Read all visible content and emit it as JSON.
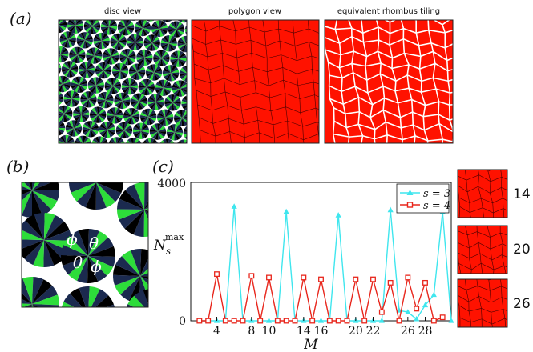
{
  "figure": {
    "panel_labels": {
      "a": "(a)",
      "b": "(b)",
      "c": "(c)"
    },
    "panel_a_titles": [
      "disc view",
      "polygon view",
      "equivalent rhombus tiling"
    ],
    "panel_b_angles": {
      "phi": "ϕ",
      "theta": "θ"
    },
    "side_labels": [
      "14",
      "20",
      "26"
    ],
    "colors": {
      "navy": "#1b2a4f",
      "teal": "#1f7f9c",
      "green": "#2ddc3a",
      "black": "#000000",
      "red": "#ff1200",
      "cyan": "#3fe6ee",
      "series_red": "#e8261c"
    }
  },
  "chart_data": {
    "type": "line",
    "title": "",
    "xlabel": "M",
    "ylabel": "N_s^max",
    "ylabel_main": "N",
    "ylabel_sub": "s",
    "ylabel_sup": "max",
    "xlim": [
      1,
      31
    ],
    "ylim": [
      0,
      4000
    ],
    "y_ticks": [
      0,
      4000
    ],
    "y_tick_labels": [
      "0",
      "4000"
    ],
    "x_ticks": [
      4,
      8,
      10,
      14,
      16,
      20,
      22,
      26,
      28
    ],
    "x_tick_labels": [
      "4",
      "8",
      "10",
      "14",
      "16",
      "20",
      "22",
      "26",
      "28"
    ],
    "legend": [
      "s = 3",
      "s = 4"
    ],
    "legend_position": "top-right",
    "series": [
      {
        "name": "s = 3",
        "marker": "triangle",
        "color": "#3fe6ee",
        "x": [
          2,
          3,
          4,
          5,
          6,
          7,
          8,
          9,
          10,
          11,
          12,
          13,
          14,
          15,
          16,
          17,
          18,
          19,
          20,
          21,
          22,
          23,
          24,
          25,
          26,
          27,
          28,
          29,
          30,
          31
        ],
        "y": [
          0,
          0,
          0,
          0,
          3300,
          0,
          0,
          0,
          0,
          0,
          3150,
          0,
          0,
          0,
          0,
          0,
          3050,
          0,
          0,
          0,
          0,
          0,
          3200,
          300,
          250,
          50,
          450,
          750,
          3150,
          0
        ]
      },
      {
        "name": "s = 4",
        "marker": "square",
        "color": "#e8261c",
        "x": [
          2,
          3,
          4,
          5,
          6,
          7,
          8,
          9,
          10,
          11,
          12,
          13,
          14,
          15,
          16,
          17,
          18,
          19,
          20,
          21,
          22,
          23,
          24,
          25,
          26,
          27,
          28,
          29,
          30
        ],
        "y": [
          0,
          0,
          1350,
          0,
          0,
          0,
          1300,
          0,
          1250,
          0,
          0,
          0,
          1250,
          0,
          1200,
          0,
          0,
          0,
          1200,
          0,
          1200,
          250,
          1100,
          0,
          1250,
          350,
          1100,
          0,
          100
        ]
      }
    ]
  }
}
